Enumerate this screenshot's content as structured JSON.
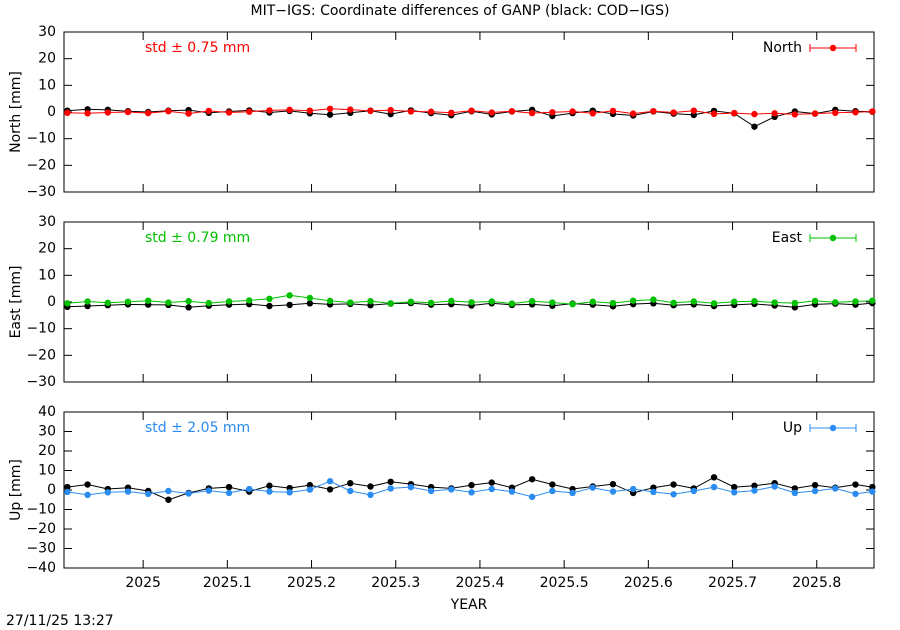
{
  "title": "MIT−IGS: Coordinate differences of GANP (black: COD−IGS)",
  "timestamp": "27/11/25 13:27",
  "chart_data": [
    {
      "type": "line",
      "ylabel": "North [mm]",
      "annotation": "std ± 0.75 mm",
      "legend": "upper right",
      "xlim": [
        2024.906,
        2025.868
      ],
      "xticks": [
        2025,
        2025.1,
        2025.2,
        2025.3,
        2025.4,
        2025.5,
        2025.6,
        2025.7,
        2025.8
      ],
      "ylim": [
        -30,
        30
      ],
      "yticks": [
        {
          "value": -30,
          "label": "−30"
        },
        {
          "value": -20,
          "label": "−20"
        },
        {
          "value": -10,
          "label": "−10"
        },
        0,
        10,
        20,
        30
      ],
      "x": [
        2024.91,
        2024.934,
        2024.958,
        2024.982,
        2025.006,
        2025.03,
        2025.054,
        2025.078,
        2025.102,
        2025.126,
        2025.15,
        2025.174,
        2025.198,
        2025.222,
        2025.246,
        2025.27,
        2025.294,
        2025.318,
        2025.342,
        2025.366,
        2025.39,
        2025.414,
        2025.438,
        2025.462,
        2025.486,
        2025.51,
        2025.534,
        2025.558,
        2025.582,
        2025.606,
        2025.63,
        2025.654,
        2025.678,
        2025.702,
        2025.726,
        2025.75,
        2025.774,
        2025.798,
        2025.822,
        2025.846,
        2025.866
      ],
      "series": [
        {
          "color": "#000000",
          "values": [
            0.5,
            1,
            0.8,
            0.3,
            0,
            0.5,
            0.7,
            -0.3,
            0.2,
            0.6,
            -0.2,
            0.4,
            -0.5,
            -1,
            -0.3,
            0.5,
            -0.8,
            0.6,
            -0.4,
            -1.2,
            0.3,
            -0.9,
            0.2,
            0.8,
            -1.5,
            -0.4,
            0.5,
            -0.7,
            -1.3,
            0.2,
            -0.6,
            -1.1,
            0.4,
            -0.5,
            -5.5,
            -1.8,
            0.2,
            -0.6,
            0.8,
            0.3,
            0.1
          ]
        },
        {
          "name": "North",
          "color": "#ff0000",
          "values": [
            -0.3,
            -0.5,
            -0.2,
            0,
            -0.4,
            0.3,
            -0.6,
            0.4,
            -0.2,
            0.1,
            0.6,
            0.8,
            0.5,
            1.2,
            0.9,
            0.4,
            0.7,
            0.2,
            0.1,
            -0.3,
            0.5,
            -0.2,
            0.3,
            -0.4,
            -0.1,
            0.2,
            -0.5,
            0.4,
            -0.6,
            0.3,
            -0.2,
            0.5,
            -0.7,
            -0.4,
            -0.8,
            -0.5,
            -0.9,
            -0.6,
            -0.3,
            -0.1,
            0.2
          ]
        }
      ]
    },
    {
      "type": "line",
      "ylabel": "East [mm]",
      "annotation": "std ± 0.79 mm",
      "legend": "upper right",
      "xlim": [
        2024.906,
        2025.868
      ],
      "xticks": [
        2025,
        2025.1,
        2025.2,
        2025.3,
        2025.4,
        2025.5,
        2025.6,
        2025.7,
        2025.8
      ],
      "ylim": [
        -30,
        30
      ],
      "yticks": [
        {
          "value": -30,
          "label": "−30"
        },
        {
          "value": -20,
          "label": "−20"
        },
        {
          "value": -10,
          "label": "−10"
        },
        0,
        10,
        20,
        30
      ],
      "x": [
        2024.91,
        2024.934,
        2024.958,
        2024.982,
        2025.006,
        2025.03,
        2025.054,
        2025.078,
        2025.102,
        2025.126,
        2025.15,
        2025.174,
        2025.198,
        2025.222,
        2025.246,
        2025.27,
        2025.294,
        2025.318,
        2025.342,
        2025.366,
        2025.39,
        2025.414,
        2025.438,
        2025.462,
        2025.486,
        2025.51,
        2025.534,
        2025.558,
        2025.582,
        2025.606,
        2025.63,
        2025.654,
        2025.678,
        2025.702,
        2025.726,
        2025.75,
        2025.774,
        2025.798,
        2025.822,
        2025.846,
        2025.866
      ],
      "series": [
        {
          "color": "#000000",
          "values": [
            -1.8,
            -1.5,
            -1.2,
            -0.9,
            -1,
            -1.1,
            -2,
            -1.4,
            -1,
            -0.8,
            -1.5,
            -1.1,
            -0.5,
            -0.9,
            -0.7,
            -1.2,
            -0.6,
            -0.4,
            -1,
            -0.8,
            -1.3,
            -0.5,
            -1.1,
            -0.9,
            -1.4,
            -0.6,
            -1,
            -1.6,
            -0.8,
            -0.5,
            -1.2,
            -0.9,
            -1.5,
            -1.1,
            -0.7,
            -1.3,
            -2,
            -0.9,
            -0.6,
            -1,
            -0.4
          ]
        },
        {
          "name": "East",
          "color": "#00c000",
          "values": [
            -0.5,
            0.2,
            -0.3,
            0.1,
            0.5,
            -0.2,
            0.3,
            -0.4,
            0.2,
            0.6,
            1.2,
            2.5,
            1.5,
            0.4,
            -0.2,
            0.3,
            -0.5,
            0.1,
            -0.3,
            0.4,
            -0.1,
            0.2,
            -0.6,
            0.3,
            -0.2,
            -0.8,
            0.1,
            -0.4,
            0.5,
            0.9,
            -0.3,
            0.2,
            -0.5,
            0.1,
            0.3,
            -0.2,
            -0.4,
            0.4,
            -0.1,
            0.2,
            0.5
          ]
        }
      ]
    },
    {
      "type": "line",
      "ylabel": "Up [mm]",
      "xlabel": "YEAR",
      "annotation": "std ± 2.05 mm",
      "legend": "upper right",
      "xlim": [
        2024.906,
        2025.868
      ],
      "xticks": [
        2025,
        2025.1,
        2025.2,
        2025.3,
        2025.4,
        2025.5,
        2025.6,
        2025.7,
        2025.8
      ],
      "ylim": [
        -40,
        40
      ],
      "yticks": [
        {
          "value": -40,
          "label": "−40"
        },
        {
          "value": -30,
          "label": "−30"
        },
        {
          "value": -20,
          "label": "−20"
        },
        {
          "value": -10,
          "label": "−10"
        },
        0,
        10,
        20,
        30,
        40
      ],
      "x": [
        2024.91,
        2024.934,
        2024.958,
        2024.982,
        2025.006,
        2025.03,
        2025.054,
        2025.078,
        2025.102,
        2025.126,
        2025.15,
        2025.174,
        2025.198,
        2025.222,
        2025.246,
        2025.27,
        2025.294,
        2025.318,
        2025.342,
        2025.366,
        2025.39,
        2025.414,
        2025.438,
        2025.462,
        2025.486,
        2025.51,
        2025.534,
        2025.558,
        2025.582,
        2025.606,
        2025.63,
        2025.654,
        2025.678,
        2025.702,
        2025.726,
        2025.75,
        2025.774,
        2025.798,
        2025.822,
        2025.846,
        2025.866
      ],
      "series": [
        {
          "color": "#000000",
          "values": [
            1.5,
            2.8,
            0.5,
            1.2,
            -0.5,
            -5,
            -1.5,
            0.8,
            1.5,
            -0.8,
            2.2,
            1,
            2.5,
            0.3,
            3.5,
            1.8,
            4.2,
            3,
            1.5,
            0.8,
            2.5,
            3.8,
            1.2,
            5.5,
            2.8,
            0.5,
            1.8,
            3,
            -1.5,
            1.2,
            2.8,
            0.8,
            6.5,
            1.5,
            2.2,
            3.5,
            0.8,
            2.5,
            1.2,
            2.8,
            1.5
          ]
        },
        {
          "name": "Up",
          "color": "#2a8cf0",
          "values": [
            -1,
            -2.5,
            -1.2,
            -0.8,
            -2,
            -0.5,
            -1.8,
            -0.3,
            -1.5,
            0.5,
            -0.8,
            -1.2,
            0.2,
            4.5,
            -0.5,
            -2.5,
            0.8,
            1.5,
            -0.5,
            0.3,
            -1.2,
            0.5,
            -0.8,
            -3.5,
            -0.5,
            -1.5,
            1.2,
            -0.8,
            0.5,
            -1,
            -2.2,
            -0.5,
            1.5,
            -1.2,
            -0.3,
            1.8,
            -1.5,
            -0.5,
            0.8,
            -2,
            -0.8
          ]
        }
      ]
    }
  ]
}
